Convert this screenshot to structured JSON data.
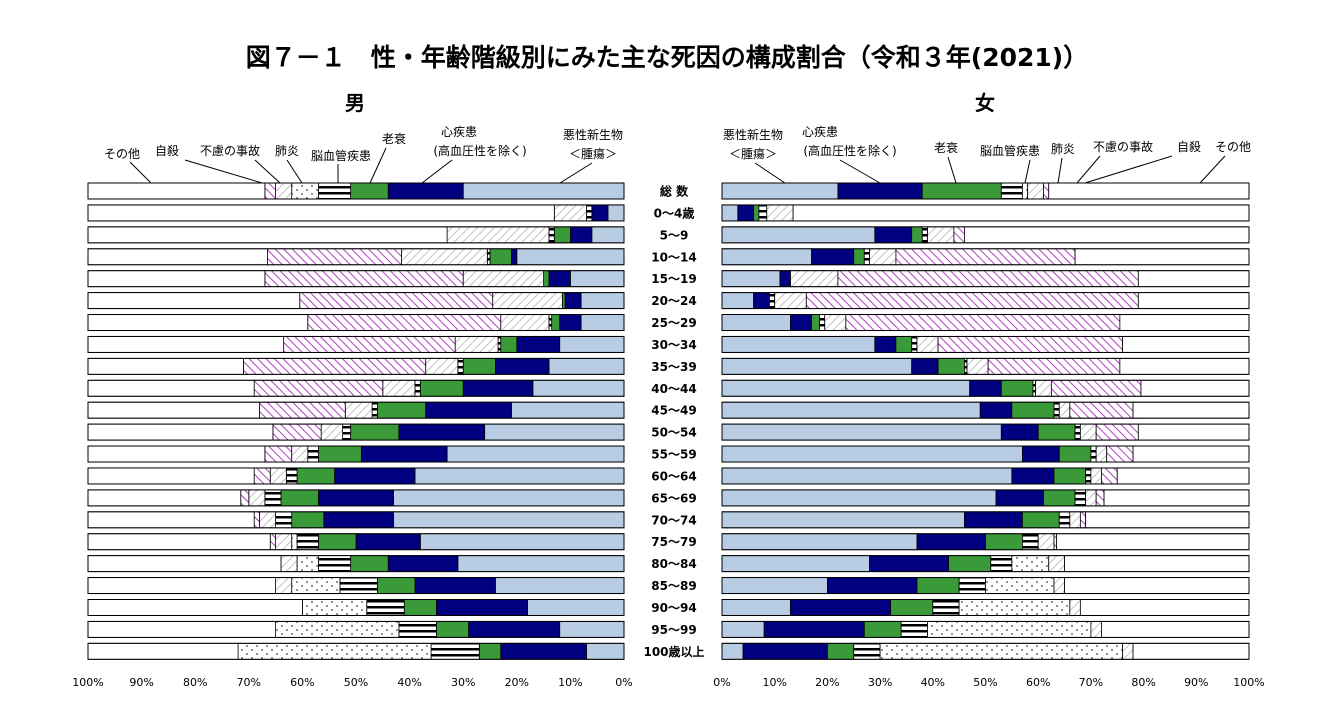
{
  "title": "図７－１　性・年齢階級別にみた主な死因の構成割合（令和３年(2021)）",
  "colors": {
    "malignant": "#b8cce4",
    "heart": "#000080",
    "cerebro": "#3a9a3a",
    "pneumonia": "striped-black-white",
    "senility": "dotted-white",
    "accident": "hatched-gray",
    "suicide": "hatched-purple",
    "other": "#ffffff"
  },
  "chart_data": [
    {
      "type": "bar",
      "orientation": "horizontal-stacked-100",
      "panel": "male",
      "direction": "right-to-left",
      "title": "男",
      "xlim": [
        0,
        100
      ],
      "xticks": [
        "100%",
        "90%",
        "80%",
        "70%",
        "60%",
        "50%",
        "40%",
        "30%",
        "20%",
        "10%",
        "0%"
      ],
      "categories": [
        "総 数",
        "0～4歳",
        "5～9",
        "10～14",
        "15～19",
        "20～24",
        "25～29",
        "30～34",
        "35～39",
        "40～44",
        "45～49",
        "50～54",
        "55～59",
        "60～64",
        "65～69",
        "70～74",
        "75～79",
        "80～84",
        "85～89",
        "90～94",
        "95～99",
        "100歳以上"
      ],
      "series": [
        {
          "name": "悪性新生物＜腫瘍＞",
          "values": [
            30,
            3,
            6,
            20,
            10,
            8,
            8,
            12,
            14,
            17,
            21,
            26,
            33,
            39,
            43,
            43,
            38,
            31,
            24,
            18,
            12,
            7
          ]
        },
        {
          "name": "心疾患（高血圧性を除く）",
          "values": [
            14,
            3,
            4,
            1,
            4,
            3,
            4,
            8,
            10,
            13,
            16,
            16,
            16,
            15,
            14,
            13,
            12,
            13,
            15,
            17,
            17,
            16
          ]
        },
        {
          "name": "脳血管疾患",
          "values": [
            7,
            0,
            3,
            4,
            1,
            0.5,
            1.5,
            3,
            6,
            8,
            9,
            9,
            8,
            7,
            7,
            6,
            7,
            7,
            7,
            6,
            6,
            4
          ]
        },
        {
          "name": "肺炎",
          "values": [
            6,
            1,
            1,
            0.5,
            0,
            0,
            0.5,
            0.5,
            1,
            1,
            1,
            1.5,
            2,
            2,
            3,
            3,
            4,
            6,
            7,
            7,
            7,
            9
          ]
        },
        {
          "name": "老衰",
          "values": [
            5,
            0,
            0,
            0,
            0,
            0,
            0,
            0,
            0,
            0,
            0,
            0,
            0,
            0,
            0,
            0,
            1,
            4,
            9,
            12,
            23,
            36
          ]
        },
        {
          "name": "不慮の事故",
          "values": [
            3,
            6,
            19,
            16,
            15,
            13,
            9,
            8,
            6,
            6,
            5,
            4,
            3,
            3,
            3,
            3,
            3,
            3,
            3,
            0,
            0,
            0
          ]
        },
        {
          "name": "自殺",
          "values": [
            2,
            0,
            0,
            25,
            37,
            36,
            36,
            32,
            34,
            24,
            16,
            9,
            5,
            3,
            1.5,
            1,
            1,
            0,
            0,
            0,
            0,
            0
          ]
        },
        {
          "name": "その他",
          "values": [
            33,
            87,
            67,
            33.5,
            33,
            39.5,
            41,
            36.5,
            29,
            31,
            32,
            34.5,
            33,
            31,
            28.5,
            31,
            34,
            36,
            35,
            40,
            35,
            28
          ]
        }
      ]
    },
    {
      "type": "bar",
      "orientation": "horizontal-stacked-100",
      "panel": "female",
      "direction": "left-to-right",
      "title": "女",
      "xlim": [
        0,
        100
      ],
      "xticks": [
        "0%",
        "10%",
        "20%",
        "30%",
        "40%",
        "50%",
        "60%",
        "70%",
        "80%",
        "90%",
        "100%"
      ],
      "categories": [
        "総 数",
        "0～4歳",
        "5～9",
        "10～14",
        "15～19",
        "20～24",
        "25～29",
        "30～34",
        "35～39",
        "40～44",
        "45～49",
        "50～54",
        "55～59",
        "60～64",
        "65～69",
        "70～74",
        "75～79",
        "80～84",
        "85～89",
        "90～94",
        "95～99",
        "100歳以上"
      ],
      "series": [
        {
          "name": "悪性新生物＜腫瘍＞",
          "values": [
            22,
            3,
            29,
            17,
            11,
            6,
            13,
            29,
            36,
            47,
            49,
            53,
            57,
            55,
            52,
            46,
            37,
            28,
            20,
            13,
            8,
            4
          ]
        },
        {
          "name": "心疾患（高血圧性を除く）",
          "values": [
            16,
            3,
            7,
            8,
            2,
            3,
            4,
            4,
            5,
            6,
            6,
            7,
            7,
            8,
            9,
            11,
            13,
            15,
            17,
            19,
            19,
            16
          ]
        },
        {
          "name": "脳血管疾患",
          "values": [
            15,
            1,
            2,
            2,
            0,
            0,
            1.5,
            3,
            5,
            6,
            8,
            7,
            6,
            6,
            6,
            7,
            7,
            8,
            8,
            8,
            7,
            5
          ]
        },
        {
          "name": "肺炎",
          "values": [
            4,
            1.5,
            1,
            1,
            0,
            1,
            1,
            1,
            0.5,
            0.5,
            1,
            1,
            1,
            1,
            2,
            2,
            3,
            4,
            5,
            5,
            5,
            5
          ]
        },
        {
          "name": "老衰",
          "values": [
            1,
            0,
            0,
            0,
            0,
            0,
            0,
            0,
            0,
            0,
            0,
            0,
            0,
            0,
            0,
            0,
            0,
            7,
            13,
            21,
            31,
            46
          ]
        },
        {
          "name": "不慮の事故",
          "values": [
            3,
            5,
            5,
            5,
            9,
            6,
            4,
            4,
            4,
            3,
            2,
            3,
            2,
            2,
            2,
            2,
            3,
            3,
            2,
            2,
            2,
            2
          ]
        },
        {
          "name": "自殺",
          "values": [
            1,
            0,
            2,
            34,
            57,
            63,
            52,
            35,
            25,
            17,
            12,
            8,
            5,
            3,
            1.5,
            1,
            0.5,
            0,
            0,
            0,
            0,
            0
          ]
        },
        {
          "name": "その他",
          "values": [
            38,
            86.5,
            54,
            33,
            21,
            21,
            24.5,
            24,
            24.5,
            20.5,
            22,
            21,
            22,
            25,
            27.5,
            31,
            36.5,
            35,
            35,
            32,
            28,
            22
          ]
        }
      ]
    }
  ],
  "labels": {
    "male": {
      "other": "その他",
      "suicide": "自殺",
      "accident": "不慮の事故",
      "pneumonia": "肺炎",
      "cerebro": "脳血管疾患",
      "senility": "老衰",
      "heart_1": "心疾患",
      "heart_2": "(高血圧性を除く)",
      "malignant_1": "悪性新生物",
      "malignant_2": "＜腫瘍＞"
    },
    "female": {
      "malignant_1": "悪性新生物",
      "malignant_2": "＜腫瘍＞",
      "heart_1": "心疾患",
      "heart_2": "(高血圧性を除く)",
      "senility": "老衰",
      "cerebro": "脳血管疾患",
      "pneumonia": "肺炎",
      "accident": "不慮の事故",
      "suicide": "自殺",
      "other": "その他"
    }
  }
}
